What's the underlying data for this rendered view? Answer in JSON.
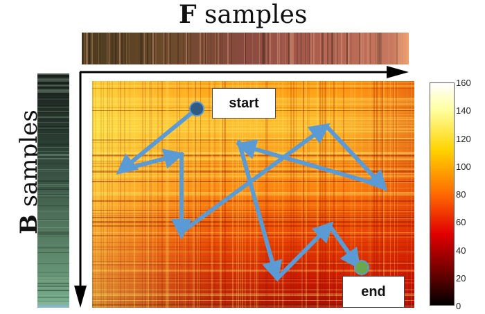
{
  "titles": {
    "f_axis_bold": "F",
    "f_axis_rest": " samples",
    "b_axis_bold": "B",
    "b_axis_rest": " samples"
  },
  "labels": {
    "start": "start",
    "end": "end"
  },
  "colorbar": {
    "ticks": [
      "160",
      "140",
      "120",
      "100",
      "80",
      "60",
      "40",
      "20",
      "0"
    ],
    "range": [
      0,
      160
    ],
    "colormap": "hot"
  },
  "colors": {
    "path": "#5b9bd5",
    "start_marker": "#2f5b82",
    "end_marker": "#6aa84f",
    "axis_arrow": "#000000"
  }
}
